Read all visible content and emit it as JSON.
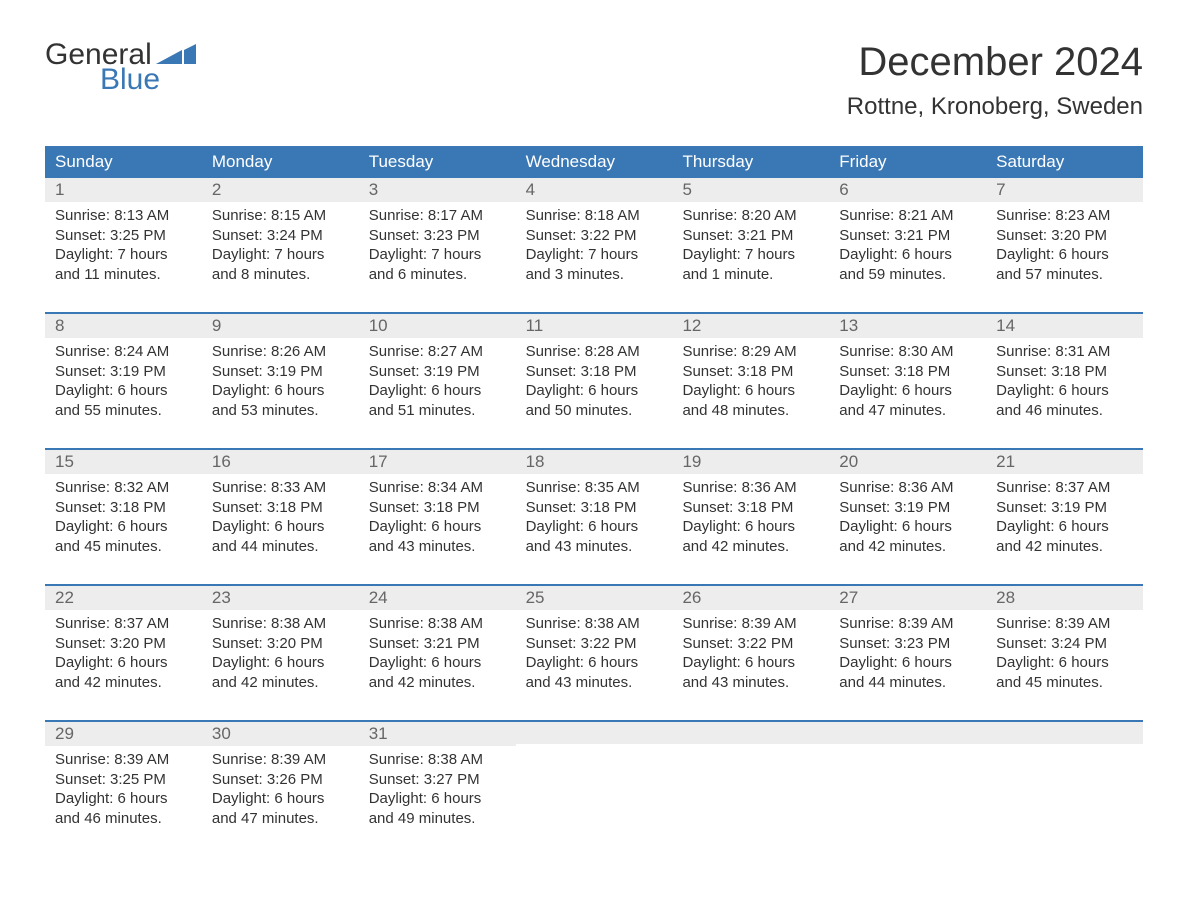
{
  "logo": {
    "word1": "General",
    "word2": "Blue"
  },
  "title": "December 2024",
  "location": "Rottne, Kronoberg, Sweden",
  "colors": {
    "header_bg": "#3a78b5",
    "header_text": "#ffffff",
    "daynum_bg": "#ededed",
    "daynum_text": "#666666",
    "body_text": "#333333",
    "logo_blue": "#3a78b5"
  },
  "weekdays": [
    "Sunday",
    "Monday",
    "Tuesday",
    "Wednesday",
    "Thursday",
    "Friday",
    "Saturday"
  ],
  "weeks": [
    [
      {
        "n": "1",
        "sr": "8:13 AM",
        "ss": "3:25 PM",
        "dl": "7 hours and 11 minutes."
      },
      {
        "n": "2",
        "sr": "8:15 AM",
        "ss": "3:24 PM",
        "dl": "7 hours and 8 minutes."
      },
      {
        "n": "3",
        "sr": "8:17 AM",
        "ss": "3:23 PM",
        "dl": "7 hours and 6 minutes."
      },
      {
        "n": "4",
        "sr": "8:18 AM",
        "ss": "3:22 PM",
        "dl": "7 hours and 3 minutes."
      },
      {
        "n": "5",
        "sr": "8:20 AM",
        "ss": "3:21 PM",
        "dl": "7 hours and 1 minute."
      },
      {
        "n": "6",
        "sr": "8:21 AM",
        "ss": "3:21 PM",
        "dl": "6 hours and 59 minutes."
      },
      {
        "n": "7",
        "sr": "8:23 AM",
        "ss": "3:20 PM",
        "dl": "6 hours and 57 minutes."
      }
    ],
    [
      {
        "n": "8",
        "sr": "8:24 AM",
        "ss": "3:19 PM",
        "dl": "6 hours and 55 minutes."
      },
      {
        "n": "9",
        "sr": "8:26 AM",
        "ss": "3:19 PM",
        "dl": "6 hours and 53 minutes."
      },
      {
        "n": "10",
        "sr": "8:27 AM",
        "ss": "3:19 PM",
        "dl": "6 hours and 51 minutes."
      },
      {
        "n": "11",
        "sr": "8:28 AM",
        "ss": "3:18 PM",
        "dl": "6 hours and 50 minutes."
      },
      {
        "n": "12",
        "sr": "8:29 AM",
        "ss": "3:18 PM",
        "dl": "6 hours and 48 minutes."
      },
      {
        "n": "13",
        "sr": "8:30 AM",
        "ss": "3:18 PM",
        "dl": "6 hours and 47 minutes."
      },
      {
        "n": "14",
        "sr": "8:31 AM",
        "ss": "3:18 PM",
        "dl": "6 hours and 46 minutes."
      }
    ],
    [
      {
        "n": "15",
        "sr": "8:32 AM",
        "ss": "3:18 PM",
        "dl": "6 hours and 45 minutes."
      },
      {
        "n": "16",
        "sr": "8:33 AM",
        "ss": "3:18 PM",
        "dl": "6 hours and 44 minutes."
      },
      {
        "n": "17",
        "sr": "8:34 AM",
        "ss": "3:18 PM",
        "dl": "6 hours and 43 minutes."
      },
      {
        "n": "18",
        "sr": "8:35 AM",
        "ss": "3:18 PM",
        "dl": "6 hours and 43 minutes."
      },
      {
        "n": "19",
        "sr": "8:36 AM",
        "ss": "3:18 PM",
        "dl": "6 hours and 42 minutes."
      },
      {
        "n": "20",
        "sr": "8:36 AM",
        "ss": "3:19 PM",
        "dl": "6 hours and 42 minutes."
      },
      {
        "n": "21",
        "sr": "8:37 AM",
        "ss": "3:19 PM",
        "dl": "6 hours and 42 minutes."
      }
    ],
    [
      {
        "n": "22",
        "sr": "8:37 AM",
        "ss": "3:20 PM",
        "dl": "6 hours and 42 minutes."
      },
      {
        "n": "23",
        "sr": "8:38 AM",
        "ss": "3:20 PM",
        "dl": "6 hours and 42 minutes."
      },
      {
        "n": "24",
        "sr": "8:38 AM",
        "ss": "3:21 PM",
        "dl": "6 hours and 42 minutes."
      },
      {
        "n": "25",
        "sr": "8:38 AM",
        "ss": "3:22 PM",
        "dl": "6 hours and 43 minutes."
      },
      {
        "n": "26",
        "sr": "8:39 AM",
        "ss": "3:22 PM",
        "dl": "6 hours and 43 minutes."
      },
      {
        "n": "27",
        "sr": "8:39 AM",
        "ss": "3:23 PM",
        "dl": "6 hours and 44 minutes."
      },
      {
        "n": "28",
        "sr": "8:39 AM",
        "ss": "3:24 PM",
        "dl": "6 hours and 45 minutes."
      }
    ],
    [
      {
        "n": "29",
        "sr": "8:39 AM",
        "ss": "3:25 PM",
        "dl": "6 hours and 46 minutes."
      },
      {
        "n": "30",
        "sr": "8:39 AM",
        "ss": "3:26 PM",
        "dl": "6 hours and 47 minutes."
      },
      {
        "n": "31",
        "sr": "8:38 AM",
        "ss": "3:27 PM",
        "dl": "6 hours and 49 minutes."
      },
      null,
      null,
      null,
      null
    ]
  ],
  "labels": {
    "sunrise": "Sunrise: ",
    "sunset": "Sunset: ",
    "daylight": "Daylight: "
  }
}
